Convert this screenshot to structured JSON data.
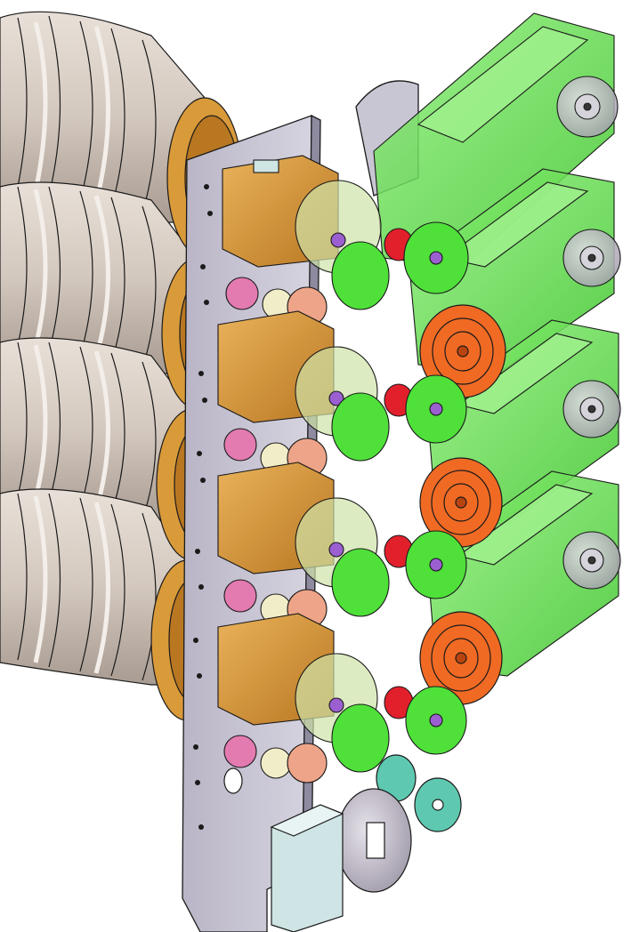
{
  "image": {
    "subject": "cad-assembly-render",
    "background_color": "#ffffff"
  },
  "palette": {
    "ribbed_cylinder": "#d7cdc4",
    "ribbed_cylinder_shadow": "#a89b91",
    "mount_plate": "#c9c6d4",
    "mount_plate_edge": "#8e8aa0",
    "tan_gear_housing": "#d99a3a",
    "tan_gear_housing_dark": "#a76a1e",
    "green_part": "#4fe03a",
    "green_part_light": "#9ff08c",
    "green_part_dark": "#2a9a1e",
    "orange_disc": "#f06a24",
    "orange_disc_dark": "#b8430e",
    "pink_cam": "#e37ab0",
    "salmon_gear": "#eea488",
    "cream_roller": "#f1edc8",
    "purple_shaft": "#9b5fd1",
    "red_collar": "#e2202c",
    "gray_motor": "#bdb8c4",
    "teal_disc": "#5ec9b0",
    "pale_box": "#cfe4e4",
    "outline": "#1a1a1a"
  },
  "assembly": {
    "module_rows": 4,
    "orange_discs": 3,
    "cylinder_count": 4
  }
}
